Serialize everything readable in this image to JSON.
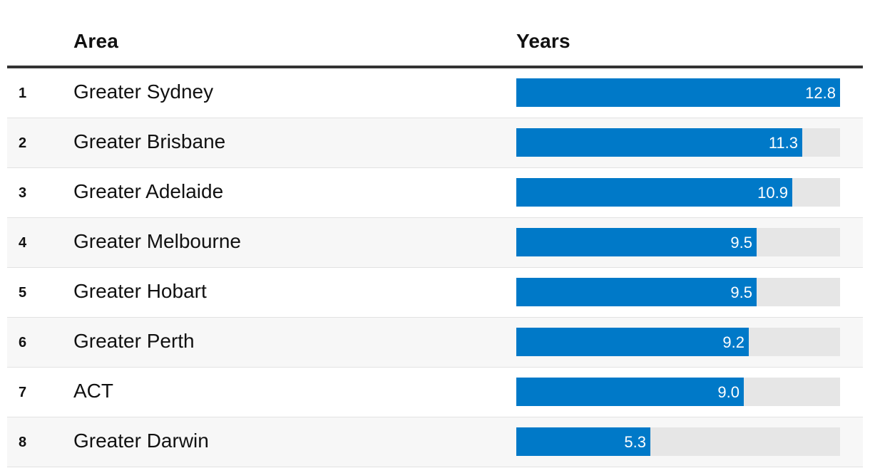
{
  "header": {
    "area_label": "Area",
    "years_label": "Years"
  },
  "colors": {
    "bar": "#0079c8",
    "track": "#e6e6e6",
    "rule": "#333333",
    "alt_row": "#f7f7f7"
  },
  "rows": [
    {
      "rank": "1",
      "area": "Greater Sydney",
      "value_label": "12.8"
    },
    {
      "rank": "2",
      "area": "Greater Brisbane",
      "value_label": "11.3"
    },
    {
      "rank": "3",
      "area": "Greater Adelaide",
      "value_label": "10.9"
    },
    {
      "rank": "4",
      "area": "Greater Melbourne",
      "value_label": "9.5"
    },
    {
      "rank": "5",
      "area": "Greater Hobart",
      "value_label": "9.5"
    },
    {
      "rank": "6",
      "area": "Greater Perth",
      "value_label": "9.2"
    },
    {
      "rank": "7",
      "area": "ACT",
      "value_label": "9.0"
    },
    {
      "rank": "8",
      "area": "Greater Darwin",
      "value_label": "5.3"
    }
  ],
  "chart_data": {
    "type": "bar",
    "categories": [
      "Greater Sydney",
      "Greater Brisbane",
      "Greater Adelaide",
      "Greater Melbourne",
      "Greater Hobart",
      "Greater Perth",
      "ACT",
      "Greater Darwin"
    ],
    "values": [
      12.8,
      11.3,
      10.9,
      9.5,
      9.5,
      9.2,
      9.0,
      5.3
    ],
    "xlim": [
      0,
      12.8
    ],
    "title": "",
    "xlabel": "Years",
    "ylabel": "Area"
  }
}
